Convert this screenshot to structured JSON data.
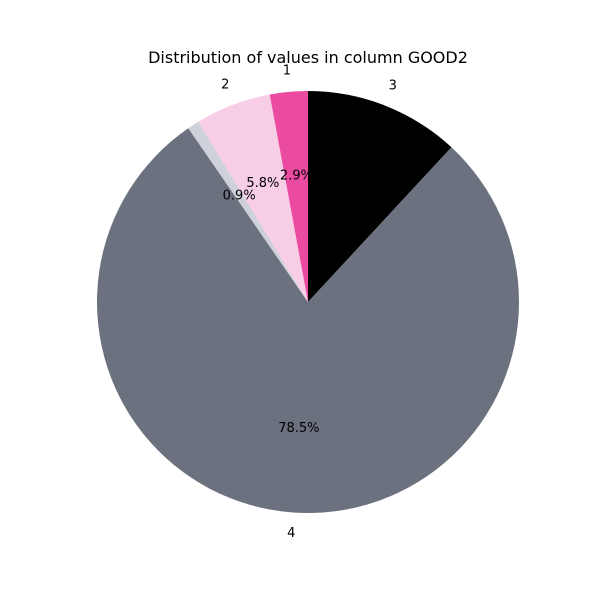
{
  "chart_data": {
    "type": "pie",
    "title": "Distribution of values in column GOOD2",
    "slices": [
      {
        "label": "3",
        "value": 11.9,
        "pct_label": "",
        "color": "#000000"
      },
      {
        "label": "4",
        "value": 78.5,
        "pct_label": "78.5%",
        "color": "#6b717e"
      },
      {
        "label": "",
        "value": 0.9,
        "pct_label": "0.9%",
        "color": "#ced1d9"
      },
      {
        "label": "2",
        "value": 5.8,
        "pct_label": "5.8%",
        "color": "#f8cde6"
      },
      {
        "label": "1",
        "value": 2.9,
        "pct_label": "2.9%",
        "color": "#ea4aa0"
      }
    ],
    "start_angle": "top (12 o'clock)",
    "direction": "clockwise"
  }
}
